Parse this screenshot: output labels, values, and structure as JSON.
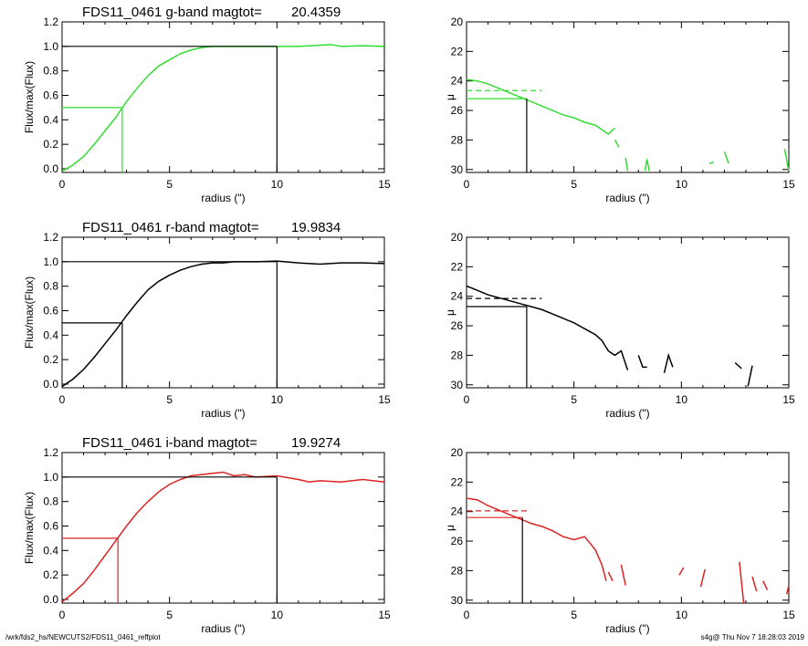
{
  "footer": {
    "left": "/wrk/fds2_hs/NEWCUTS2/FDS11_0461_reffplot",
    "right": "s4g@  Thu Nov  7 18:28:03 2019"
  },
  "chart_data": [
    {
      "type": "line",
      "panel": "g-flux",
      "color": "#33dd33",
      "title": "FDS11_0461 g-band  magtot=",
      "title_value": "20.4359",
      "xlabel": "radius (\")",
      "ylabel": "Flux/max(Flux)",
      "xlim": [
        0,
        15
      ],
      "ylim": [
        -0.03,
        1.2
      ],
      "xticks": [
        "0",
        "5",
        "10",
        "15"
      ],
      "yticks": [
        "0.0",
        "0.2",
        "0.4",
        "0.6",
        "0.8",
        "1.0",
        "1.2"
      ],
      "x": [
        0,
        0.5,
        1.0,
        1.5,
        2.0,
        2.5,
        3.0,
        3.5,
        4.0,
        4.5,
        5.0,
        5.5,
        6.0,
        6.5,
        7.0,
        7.5,
        8.0,
        9.0,
        10.0,
        11.0,
        12.0,
        12.5,
        13.0,
        14.0,
        15.0
      ],
      "y": [
        -0.02,
        0.03,
        0.1,
        0.2,
        0.31,
        0.42,
        0.55,
        0.66,
        0.76,
        0.84,
        0.89,
        0.94,
        0.97,
        0.99,
        1.0,
        1.0,
        1.0,
        1.0,
        1.0,
        1.0,
        1.01,
        1.015,
        1.0,
        1.005,
        1.0
      ],
      "half_radius": 2.8,
      "half_flux": 0.5,
      "total_radius": 10.0,
      "total_flux": 1.0,
      "total_marker_color": "#000000"
    },
    {
      "type": "line",
      "panel": "g-mu",
      "color": "#33dd33",
      "xlabel": "radius (\")",
      "ylabel": "μ",
      "xlim": [
        0,
        15
      ],
      "ylim": [
        30.2,
        20
      ],
      "xticks": [
        "0",
        "5",
        "10",
        "15"
      ],
      "yticks": [
        "20",
        "22",
        "24",
        "26",
        "28",
        "30"
      ],
      "segments": [
        [
          [
            0,
            23.9
          ],
          [
            0.5,
            24.0
          ],
          [
            1.0,
            24.2
          ],
          [
            1.5,
            24.5
          ],
          [
            2.0,
            24.8
          ],
          [
            2.5,
            25.1
          ],
          [
            3.0,
            25.4
          ],
          [
            3.5,
            25.7
          ],
          [
            4.0,
            26.0
          ],
          [
            4.5,
            26.3
          ],
          [
            5.0,
            26.5
          ],
          [
            5.5,
            26.8
          ],
          [
            6.0,
            27.0
          ],
          [
            6.3,
            27.3
          ],
          [
            6.6,
            27.6
          ],
          [
            6.9,
            27.2
          ]
        ],
        [
          [
            6.9,
            28.0
          ],
          [
            7.1,
            28.5
          ]
        ],
        [
          [
            7.4,
            29.2
          ],
          [
            7.5,
            30.1
          ]
        ],
        [
          [
            8.3,
            30.1
          ],
          [
            8.4,
            29.3
          ],
          [
            8.5,
            30.1
          ]
        ],
        [
          [
            11.3,
            29.6
          ],
          [
            11.5,
            29.5
          ]
        ],
        [
          [
            12.0,
            28.8
          ],
          [
            12.2,
            29.6
          ]
        ],
        [
          [
            14.8,
            28.6
          ],
          [
            15.0,
            30.1
          ]
        ]
      ],
      "mu_at_half": 25.2,
      "mu_dashed": 24.65,
      "half_radius": 2.8,
      "dashed_end_radius": 3.5
    },
    {
      "type": "line",
      "panel": "r-flux",
      "color": "#000000",
      "title": "FDS11_0461 r-band  magtot=",
      "title_value": "19.9834",
      "xlabel": "radius (\")",
      "ylabel": "Flux/max(Flux)",
      "xlim": [
        0,
        15
      ],
      "ylim": [
        -0.03,
        1.2
      ],
      "xticks": [
        "0",
        "5",
        "10",
        "15"
      ],
      "yticks": [
        "0.0",
        "0.2",
        "0.4",
        "0.6",
        "0.8",
        "1.0",
        "1.2"
      ],
      "x": [
        0,
        0.5,
        1.0,
        1.5,
        2.0,
        2.5,
        3.0,
        3.5,
        4.0,
        4.5,
        5.0,
        5.5,
        6.0,
        6.5,
        7.0,
        7.5,
        8.0,
        9.0,
        10.0,
        11.0,
        12.0,
        13.0,
        14.0,
        15.0
      ],
      "y": [
        -0.02,
        0.04,
        0.12,
        0.22,
        0.33,
        0.44,
        0.56,
        0.67,
        0.77,
        0.84,
        0.89,
        0.93,
        0.96,
        0.98,
        0.99,
        0.99,
        1.0,
        1.0,
        1.005,
        0.99,
        0.98,
        0.99,
        0.99,
        0.985
      ],
      "half_radius": 2.8,
      "half_flux": 0.5,
      "total_radius": 10.0,
      "total_flux": 1.0,
      "total_marker_color": "#000000"
    },
    {
      "type": "line",
      "panel": "r-mu",
      "color": "#000000",
      "xlabel": "radius (\")",
      "ylabel": "μ",
      "xlim": [
        0,
        15
      ],
      "ylim": [
        30.2,
        20
      ],
      "xticks": [
        "0",
        "5",
        "10",
        "15"
      ],
      "yticks": [
        "20",
        "22",
        "24",
        "26",
        "28",
        "30"
      ],
      "segments": [
        [
          [
            0,
            23.3
          ],
          [
            0.5,
            23.6
          ],
          [
            1.0,
            23.9
          ],
          [
            1.5,
            24.1
          ],
          [
            2.0,
            24.3
          ],
          [
            2.5,
            24.5
          ],
          [
            3.0,
            24.7
          ],
          [
            3.5,
            24.9
          ],
          [
            4.0,
            25.2
          ],
          [
            4.5,
            25.5
          ],
          [
            5.0,
            25.8
          ],
          [
            5.5,
            26.2
          ],
          [
            6.0,
            26.6
          ],
          [
            6.3,
            27.0
          ],
          [
            6.6,
            27.7
          ],
          [
            6.9,
            28.0
          ],
          [
            7.2,
            27.7
          ],
          [
            7.5,
            29.0
          ]
        ],
        [
          [
            8.0,
            28.0
          ],
          [
            8.2,
            28.8
          ],
          [
            8.4,
            28.8
          ]
        ],
        [
          [
            9.2,
            29.2
          ],
          [
            9.4,
            28.0
          ],
          [
            9.6,
            28.8
          ]
        ],
        [
          [
            12.5,
            28.5
          ],
          [
            12.8,
            28.9
          ]
        ],
        [
          [
            13.1,
            30.1
          ],
          [
            13.3,
            28.7
          ]
        ]
      ],
      "mu_at_half": 24.7,
      "mu_dashed": 24.15,
      "half_radius": 2.8,
      "dashed_end_radius": 3.5
    },
    {
      "type": "line",
      "panel": "i-flux",
      "color": "#dd2222",
      "title": "FDS11_0461 i-band  magtot=",
      "title_value": "19.9274",
      "xlabel": "radius (\")",
      "ylabel": "Flux/max(Flux)",
      "xlim": [
        0,
        15
      ],
      "ylim": [
        -0.03,
        1.2
      ],
      "xticks": [
        "0",
        "5",
        "10",
        "15"
      ],
      "yticks": [
        "0.0",
        "0.2",
        "0.4",
        "0.6",
        "0.8",
        "1.0",
        "1.2"
      ],
      "x": [
        0,
        0.5,
        1.0,
        1.5,
        2.0,
        2.5,
        3.0,
        3.5,
        4.0,
        4.5,
        5.0,
        5.5,
        6.0,
        6.5,
        7.0,
        7.5,
        8.0,
        8.5,
        9.0,
        10.0,
        11.0,
        11.5,
        12.0,
        13.0,
        14.0,
        15.0
      ],
      "y": [
        -0.02,
        0.05,
        0.13,
        0.24,
        0.36,
        0.48,
        0.6,
        0.71,
        0.8,
        0.88,
        0.94,
        0.98,
        1.01,
        1.02,
        1.03,
        1.04,
        1.01,
        1.02,
        1.0,
        1.01,
        0.98,
        0.96,
        0.97,
        0.96,
        0.98,
        0.96
      ],
      "half_radius": 2.6,
      "half_flux": 0.5,
      "total_radius": 10.0,
      "total_flux": 1.0,
      "total_marker_color": "#000000"
    },
    {
      "type": "line",
      "panel": "i-mu",
      "color": "#dd2222",
      "xlabel": "radius (\")",
      "ylabel": "μ",
      "xlim": [
        0,
        15
      ],
      "ylim": [
        30.2,
        20
      ],
      "xticks": [
        "0",
        "5",
        "10",
        "15"
      ],
      "yticks": [
        "20",
        "22",
        "24",
        "26",
        "28",
        "30"
      ],
      "segments": [
        [
          [
            0,
            23.1
          ],
          [
            0.5,
            23.2
          ],
          [
            1.0,
            23.6
          ],
          [
            1.5,
            23.9
          ],
          [
            2.0,
            24.2
          ],
          [
            2.5,
            24.5
          ],
          [
            3.0,
            24.8
          ],
          [
            3.5,
            25.0
          ],
          [
            4.0,
            25.3
          ],
          [
            4.5,
            25.7
          ],
          [
            5.0,
            25.9
          ],
          [
            5.5,
            25.7
          ],
          [
            6.0,
            26.6
          ],
          [
            6.3,
            27.6
          ],
          [
            6.5,
            28.7
          ]
        ],
        [
          [
            6.6,
            28.1
          ],
          [
            6.8,
            28.7
          ]
        ],
        [
          [
            7.2,
            27.6
          ],
          [
            7.4,
            29.0
          ]
        ],
        [
          [
            9.9,
            28.3
          ],
          [
            10.1,
            27.8
          ]
        ],
        [
          [
            10.9,
            29.1
          ],
          [
            11.1,
            27.9
          ]
        ],
        [
          [
            12.7,
            27.4
          ],
          [
            12.9,
            30.2
          ]
        ],
        [
          [
            13.3,
            28.4
          ],
          [
            13.5,
            29.4
          ]
        ],
        [
          [
            13.8,
            28.7
          ],
          [
            14.0,
            29.3
          ]
        ],
        [
          [
            14.9,
            29.6
          ],
          [
            15.0,
            29.0
          ]
        ]
      ],
      "mu_at_half": 24.4,
      "mu_dashed": 23.95,
      "half_radius": 2.6,
      "dashed_end_radius": 2.9
    }
  ]
}
